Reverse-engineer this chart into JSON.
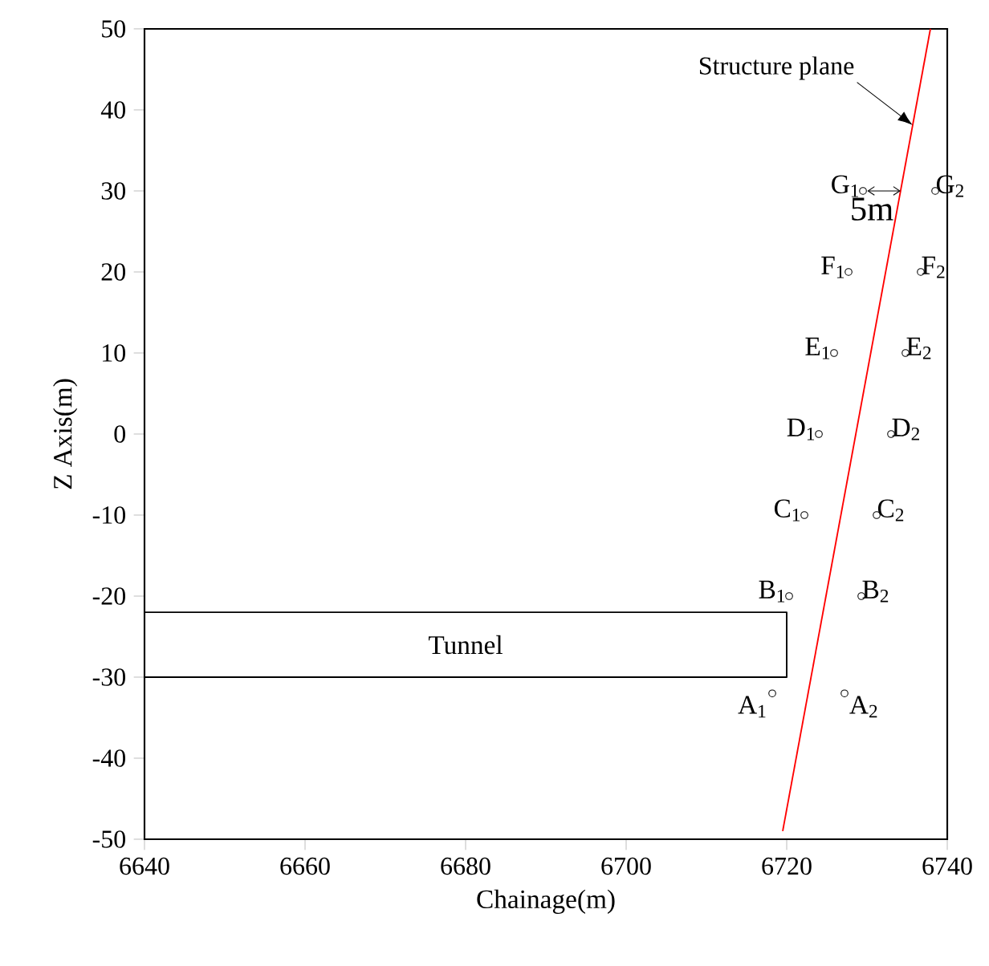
{
  "chart_data": {
    "type": "scatter",
    "xlabel": "Chainage(m)",
    "ylabel": "Z Axis(m)",
    "xlim": [
      6640,
      6740
    ],
    "ylim": [
      -50,
      50
    ],
    "xticks": [
      6640,
      6660,
      6680,
      6700,
      6720,
      6740
    ],
    "yticks": [
      -50,
      -40,
      -30,
      -20,
      -10,
      0,
      10,
      20,
      30,
      40,
      50
    ],
    "marker": "circle",
    "line_style": "solid",
    "series": [
      {
        "color": "#000000",
        "x": [
          6718.2,
          6727.2,
          6720.3,
          6729.3,
          6722.2,
          6731.2,
          6724,
          6733,
          6725.9,
          6734.8,
          6727.7,
          6736.7,
          6729.5,
          6738.5
        ],
        "values": [
          -32,
          -32,
          -20,
          -20,
          -10,
          -10,
          0,
          0,
          10,
          10,
          20,
          20,
          30,
          30
        ]
      },
      {
        "type": "line",
        "marker": "none",
        "name": "Structure plane",
        "color": "#ff0000",
        "x": [
          6719.5,
          6737.9
        ],
        "values": [
          -49,
          50
        ]
      },
      {
        "type": "line",
        "marker": "none",
        "color": "#000000",
        "x": [
          6640,
          6720,
          6720,
          6640
        ],
        "values": [
          -22,
          -22,
          -30,
          -30
        ]
      }
    ],
    "annotations": [
      {
        "text": "A$_{1}$",
        "x": 6718.2,
        "y": -32
      },
      {
        "text": "A$_{2}$",
        "x": 6727.2,
        "y": -32
      },
      {
        "text": "B$_{1}$",
        "x": 6720.3,
        "y": -20
      },
      {
        "text": "B$_{2}$",
        "x": 6729.3,
        "y": -20
      },
      {
        "text": "C$_{1}$",
        "x": 6722.2,
        "y": -10
      },
      {
        "text": "C$_{2}$",
        "x": 6731.2,
        "y": -10
      },
      {
        "text": "D$_{1}$",
        "x": 6724,
        "y": 0
      },
      {
        "text": "D$_{2}$",
        "x": 6733,
        "y": 0
      },
      {
        "text": "E$_{1}$",
        "x": 6725.9,
        "y": 10
      },
      {
        "text": "E$_{2}$",
        "x": 6734.8,
        "y": 10
      },
      {
        "text": "F$_{1}$",
        "x": 6727.7,
        "y": 20
      },
      {
        "text": "F$_{2}$",
        "x": 6736.7,
        "y": 20
      },
      {
        "text": "G$_{1}$",
        "x": 6729.5,
        "y": 30
      },
      {
        "text": "G$_{2}$",
        "x": 6738.5,
        "y": 30
      },
      "5m",
      "Tunnel"
    ]
  }
}
